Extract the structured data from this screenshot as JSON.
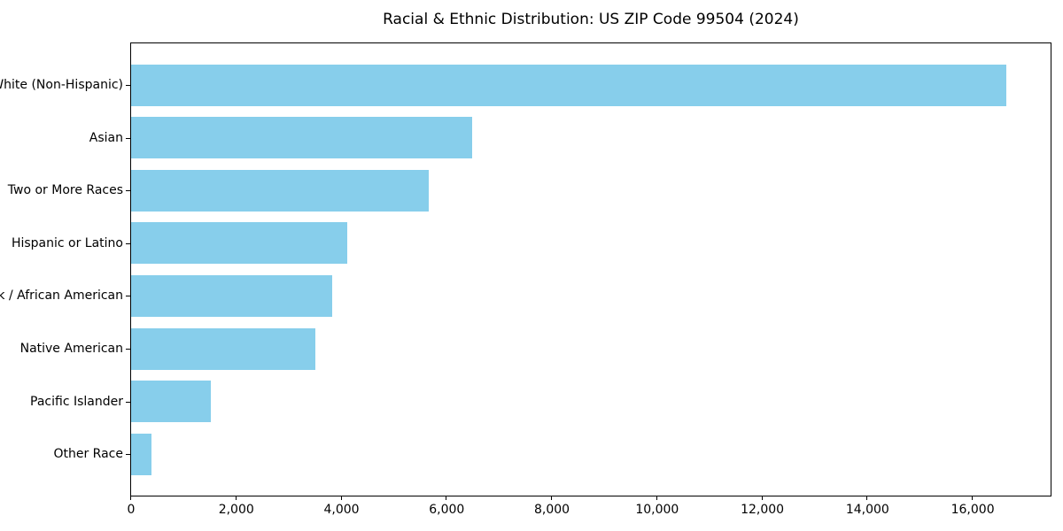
{
  "chart_data": {
    "type": "bar",
    "orientation": "horizontal",
    "title": "Racial & Ethnic Distribution: US ZIP Code 99504 (2024)",
    "categories": [
      "White (Non-Hispanic)",
      "Asian",
      "Two or More Races",
      "Hispanic or Latino",
      "Black / African American",
      "Native American",
      "Pacific Islander",
      "Other Race"
    ],
    "values": [
      16640,
      6480,
      5660,
      4110,
      3820,
      3500,
      1520,
      390
    ],
    "xlabel": "",
    "ylabel": "",
    "xlim": [
      0,
      17480
    ],
    "xticks": [
      0,
      2000,
      4000,
      6000,
      8000,
      10000,
      12000,
      14000,
      16000
    ],
    "xtick_labels": [
      "0",
      "2,000",
      "4,000",
      "6,000",
      "8,000",
      "10,000",
      "12,000",
      "14,000",
      "16,000"
    ],
    "bar_color": "#87CEEB",
    "spine_color": "#000000",
    "grid": false,
    "legend_position": "none"
  }
}
